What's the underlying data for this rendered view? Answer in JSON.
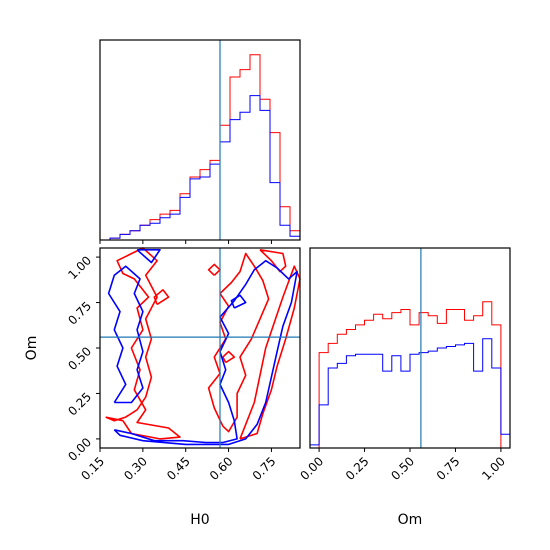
{
  "chart_data": {
    "type": "corner",
    "parameters": [
      "H0",
      "Om"
    ],
    "truths": {
      "H0": 0.57,
      "Om": 0.56
    },
    "colors": {
      "series_a": "#ff0000",
      "series_b": "#0000ff",
      "truth": "#1f77b4"
    },
    "axes": {
      "H0": {
        "label": "H0",
        "lim": [
          0.15,
          0.85
        ],
        "ticks": [
          "0.15",
          "0.30",
          "0.45",
          "0.60",
          "0.75"
        ]
      },
      "Om": {
        "label": "Om",
        "lim": [
          -0.05,
          1.05
        ],
        "ticks": [
          "0.00",
          "0.25",
          "0.50",
          "0.75",
          "1.00"
        ]
      }
    },
    "hist_H0": {
      "edges": [
        0.15,
        0.185,
        0.22,
        0.255,
        0.29,
        0.325,
        0.36,
        0.395,
        0.43,
        0.465,
        0.5,
        0.535,
        0.57,
        0.605,
        0.64,
        0.675,
        0.71,
        0.745,
        0.78,
        0.815,
        0.85
      ],
      "series_a": [
        0.0,
        0.01,
        0.03,
        0.05,
        0.08,
        0.11,
        0.14,
        0.16,
        0.25,
        0.34,
        0.38,
        0.43,
        0.62,
        0.88,
        0.92,
        1.0,
        0.76,
        0.58,
        0.18,
        0.05
      ],
      "series_b": [
        0.0,
        0.01,
        0.03,
        0.05,
        0.08,
        0.09,
        0.12,
        0.14,
        0.23,
        0.33,
        0.34,
        0.41,
        0.53,
        0.65,
        0.69,
        0.78,
        0.7,
        0.31,
        0.08,
        0.02
      ]
    },
    "hist_Om": {
      "edges": [
        -0.05,
        0.0,
        0.05,
        0.1,
        0.15,
        0.2,
        0.25,
        0.3,
        0.35,
        0.4,
        0.45,
        0.5,
        0.55,
        0.6,
        0.65,
        0.7,
        0.75,
        0.8,
        0.85,
        0.9,
        0.95,
        1.0,
        1.05
      ],
      "series_a": [
        0.0,
        0.62,
        0.68,
        0.74,
        0.77,
        0.8,
        0.83,
        0.87,
        0.84,
        0.88,
        0.9,
        0.8,
        0.88,
        0.86,
        0.81,
        0.9,
        0.9,
        0.83,
        0.86,
        0.95,
        0.8,
        0.0
      ],
      "series_b": [
        0.02,
        0.28,
        0.52,
        0.55,
        0.6,
        0.61,
        0.61,
        0.61,
        0.5,
        0.6,
        0.5,
        0.61,
        0.62,
        0.63,
        0.65,
        0.66,
        0.67,
        0.68,
        0.5,
        0.71,
        0.52,
        0.09
      ]
    },
    "contours_2d": {
      "x": "H0",
      "y": "Om",
      "series_a": [
        [
          [
            0.17,
            0.12
          ],
          [
            0.23,
            0.1
          ],
          [
            0.26,
            0.03
          ],
          [
            0.36,
            0.0
          ],
          [
            0.43,
            0.01
          ],
          [
            0.39,
            0.06
          ],
          [
            0.28,
            0.09
          ],
          [
            0.31,
            0.16
          ],
          [
            0.27,
            0.27
          ],
          [
            0.29,
            0.38
          ],
          [
            0.26,
            0.5
          ],
          [
            0.3,
            0.6
          ],
          [
            0.28,
            0.72
          ],
          [
            0.32,
            0.78
          ],
          [
            0.27,
            0.88
          ],
          [
            0.23,
            0.91
          ],
          [
            0.21,
            0.98
          ],
          [
            0.3,
            1.05
          ],
          [
            0.35,
            0.98
          ],
          [
            0.31,
            0.9
          ],
          [
            0.35,
            0.78
          ],
          [
            0.31,
            0.66
          ],
          [
            0.33,
            0.55
          ],
          [
            0.31,
            0.45
          ],
          [
            0.33,
            0.34
          ],
          [
            0.31,
            0.23
          ],
          [
            0.28,
            0.16
          ],
          [
            0.24,
            0.12
          ],
          [
            0.2,
            0.1
          ],
          [
            0.17,
            0.12
          ]
        ],
        [
          [
            0.57,
            0.8
          ],
          [
            0.6,
            0.73
          ],
          [
            0.57,
            0.64
          ],
          [
            0.59,
            0.55
          ],
          [
            0.55,
            0.45
          ],
          [
            0.57,
            0.36
          ],
          [
            0.53,
            0.28
          ],
          [
            0.55,
            0.17
          ],
          [
            0.58,
            0.07
          ],
          [
            0.6,
            0.04
          ],
          [
            0.63,
            0.12
          ],
          [
            0.63,
            0.25
          ],
          [
            0.66,
            0.35
          ],
          [
            0.64,
            0.45
          ],
          [
            0.68,
            0.55
          ],
          [
            0.71,
            0.66
          ],
          [
            0.74,
            0.77
          ],
          [
            0.72,
            0.87
          ],
          [
            0.69,
            0.95
          ],
          [
            0.66,
            1.02
          ],
          [
            0.64,
            0.92
          ],
          [
            0.61,
            0.86
          ],
          [
            0.57,
            0.8
          ]
        ],
        [
          [
            0.64,
            0.0
          ],
          [
            0.7,
            0.03
          ],
          [
            0.72,
            0.14
          ],
          [
            0.75,
            0.27
          ],
          [
            0.77,
            0.4
          ],
          [
            0.8,
            0.55
          ],
          [
            0.83,
            0.72
          ],
          [
            0.85,
            0.88
          ],
          [
            0.83,
            0.95
          ],
          [
            0.79,
            0.78
          ],
          [
            0.76,
            0.64
          ],
          [
            0.73,
            0.5
          ],
          [
            0.71,
            0.35
          ],
          [
            0.69,
            0.2
          ],
          [
            0.66,
            0.08
          ],
          [
            0.64,
            0.0
          ]
        ],
        [
          [
            0.71,
            1.04
          ],
          [
            0.75,
            0.98
          ],
          [
            0.78,
            0.92
          ],
          [
            0.8,
            0.95
          ],
          [
            0.79,
            1.02
          ],
          [
            0.71,
            1.04
          ]
        ],
        [
          [
            0.35,
            0.74
          ],
          [
            0.39,
            0.78
          ],
          [
            0.37,
            0.82
          ],
          [
            0.34,
            0.78
          ],
          [
            0.35,
            0.74
          ]
        ],
        [
          [
            0.55,
            0.9
          ],
          [
            0.57,
            0.93
          ],
          [
            0.55,
            0.96
          ],
          [
            0.53,
            0.93
          ],
          [
            0.55,
            0.9
          ]
        ],
        [
          [
            0.59,
            0.42
          ],
          [
            0.62,
            0.45
          ],
          [
            0.6,
            0.48
          ],
          [
            0.58,
            0.45
          ],
          [
            0.59,
            0.42
          ]
        ]
      ],
      "series_b": [
        [
          [
            0.2,
            0.2
          ],
          [
            0.26,
            0.2
          ],
          [
            0.3,
            0.28
          ],
          [
            0.28,
            0.38
          ],
          [
            0.3,
            0.48
          ],
          [
            0.28,
            0.6
          ],
          [
            0.3,
            0.7
          ],
          [
            0.27,
            0.8
          ],
          [
            0.29,
            0.88
          ],
          [
            0.24,
            0.95
          ],
          [
            0.2,
            0.9
          ],
          [
            0.18,
            0.8
          ],
          [
            0.22,
            0.7
          ],
          [
            0.2,
            0.6
          ],
          [
            0.23,
            0.5
          ],
          [
            0.21,
            0.4
          ],
          [
            0.24,
            0.3
          ],
          [
            0.2,
            0.2
          ]
        ],
        [
          [
            0.2,
            0.05
          ],
          [
            0.26,
            0.03
          ],
          [
            0.34,
            -0.01
          ],
          [
            0.44,
            -0.01
          ],
          [
            0.52,
            -0.02
          ],
          [
            0.58,
            -0.02
          ],
          [
            0.63,
            0.0
          ],
          [
            0.62,
            0.1
          ],
          [
            0.6,
            0.2
          ],
          [
            0.57,
            0.3
          ],
          [
            0.59,
            0.38
          ],
          [
            0.57,
            0.48
          ],
          [
            0.6,
            0.58
          ],
          [
            0.57,
            0.67
          ],
          [
            0.62,
            0.76
          ],
          [
            0.66,
            0.85
          ],
          [
            0.69,
            0.93
          ],
          [
            0.73,
            0.98
          ],
          [
            0.77,
            0.94
          ],
          [
            0.81,
            0.88
          ],
          [
            0.84,
            0.92
          ],
          [
            0.82,
            0.75
          ],
          [
            0.79,
            0.62
          ],
          [
            0.77,
            0.48
          ],
          [
            0.75,
            0.34
          ],
          [
            0.73,
            0.2
          ],
          [
            0.7,
            0.08
          ],
          [
            0.66,
            0.0
          ],
          [
            0.6,
            -0.03
          ],
          [
            0.45,
            -0.03
          ],
          [
            0.3,
            -0.01
          ],
          [
            0.22,
            0.02
          ],
          [
            0.2,
            0.05
          ]
        ],
        [
          [
            0.28,
            1.04
          ],
          [
            0.33,
            0.97
          ],
          [
            0.36,
            1.04
          ],
          [
            0.28,
            1.04
          ]
        ],
        [
          [
            0.62,
            0.72
          ],
          [
            0.66,
            0.75
          ],
          [
            0.64,
            0.79
          ],
          [
            0.61,
            0.76
          ],
          [
            0.62,
            0.72
          ]
        ]
      ]
    }
  }
}
